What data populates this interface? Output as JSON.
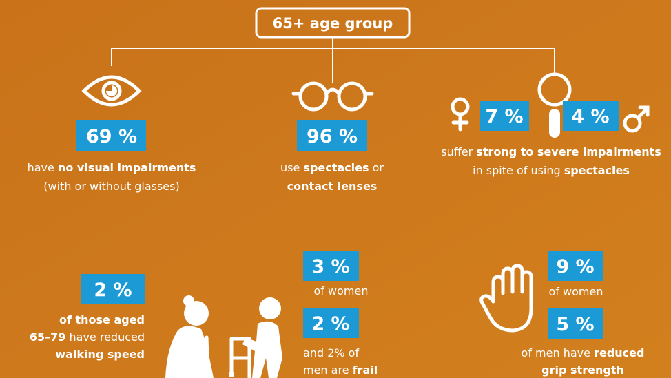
{
  "title": "65+ age group",
  "items": [
    {
      "badge": "69 %",
      "lines": [
        [
          "have ",
          "no visual impairments"
        ],
        [
          "(with or without glasses)"
        ]
      ]
    },
    {
      "badge": "96 %",
      "lines": [
        [
          "use ",
          "spectacles",
          " or"
        ],
        [
          "contact lenses"
        ]
      ]
    },
    {
      "badges": [
        "7 %",
        "4 %"
      ],
      "lines": [
        [
          "suffer ",
          "strong to severe impairments"
        ],
        [
          "in spite of using ",
          "spectacles"
        ]
      ]
    },
    {
      "badge": "2 %",
      "lines": [
        [
          "of those aged"
        ],
        [
          "65–79",
          " have reduced"
        ],
        [
          "walking speed"
        ]
      ]
    },
    {
      "groups": [
        {
          "badge": "3 %",
          "lines": [
            [
              "of women"
            ]
          ]
        },
        {
          "badge": "2 %",
          "lines": [
            [
              "and 2% of"
            ],
            [
              "men are ",
              "frail"
            ]
          ]
        }
      ]
    },
    {
      "groups": [
        {
          "badge": "9 %",
          "lines": [
            [
              "of women"
            ]
          ]
        },
        {
          "badge": "5 %",
          "lines": [
            [
              "of men have ",
              "reduced"
            ],
            [
              "grip strength"
            ]
          ]
        }
      ]
    }
  ]
}
